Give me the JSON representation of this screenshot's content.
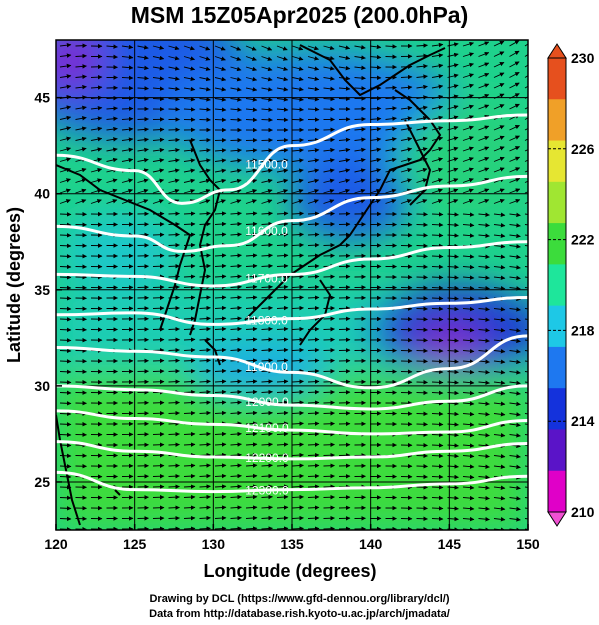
{
  "title": "MSM 15Z05Apr2025 (200.0hPa)",
  "xlabel": "Longitude (degrees)",
  "ylabel": "Latitude  (degrees)",
  "x_ticks": [
    "120",
    "125",
    "130",
    "135",
    "140",
    "145",
    "150"
  ],
  "y_ticks": [
    "25",
    "30",
    "35",
    "40",
    "45"
  ],
  "colorbar": {
    "ticks": [
      "210",
      "214",
      "218",
      "222",
      "226",
      "230"
    ],
    "colors": [
      "#e000c8",
      "#5a14c8",
      "#1432dc",
      "#1e78f0",
      "#1ec8e6",
      "#1ee69b",
      "#3cdc3c",
      "#a0e632",
      "#e6e632",
      "#f0a028",
      "#e6501e"
    ]
  },
  "credits": {
    "line1": "Drawing by DCL (https://www.gfd-dennou.org/library/dcl/)",
    "line2": "Data from http://database.rish.kyoto-u.ac.jp/arch/jmadata/"
  },
  "chart_data": {
    "type": "heatmap",
    "x_range": [
      120,
      150
    ],
    "y_range": [
      22.5,
      48
    ],
    "color_range": [
      210,
      230
    ],
    "contour_labels": [
      "11500.0",
      "11600.0",
      "11700.0",
      "11800.0",
      "11900.0",
      "12000.0",
      "12100.0",
      "12200.0",
      "12300.0"
    ],
    "contours": [
      {
        "label": "11500.0",
        "points": [
          [
            120,
            42.0
          ],
          [
            125,
            41.2
          ],
          [
            128,
            39.5
          ],
          [
            131,
            40.2
          ],
          [
            135,
            42.5
          ],
          [
            140,
            43.6
          ],
          [
            145,
            43.8
          ],
          [
            150,
            44.1
          ]
        ]
      },
      {
        "label": "11600.0",
        "points": [
          [
            120,
            38.3
          ],
          [
            125,
            37.8
          ],
          [
            128,
            37.0
          ],
          [
            131,
            37.3
          ],
          [
            135,
            38.6
          ],
          [
            140,
            39.8
          ],
          [
            145,
            40.4
          ],
          [
            150,
            40.9
          ]
        ]
      },
      {
        "label": "11700.0",
        "points": [
          [
            120,
            35.8
          ],
          [
            125,
            35.7
          ],
          [
            130,
            35.2
          ],
          [
            135,
            35.8
          ],
          [
            140,
            36.6
          ],
          [
            145,
            37.2
          ],
          [
            150,
            37.5
          ]
        ]
      },
      {
        "label": "11800.0",
        "points": [
          [
            120,
            33.7
          ],
          [
            125,
            33.8
          ],
          [
            130,
            33.2
          ],
          [
            135,
            33.5
          ],
          [
            140,
            34.0
          ],
          [
            145,
            34.3
          ],
          [
            150,
            34.6
          ]
        ]
      },
      {
        "label": "11900.0",
        "points": [
          [
            120,
            32.0
          ],
          [
            125,
            31.8
          ],
          [
            130,
            31.5
          ],
          [
            135,
            30.7
          ],
          [
            140,
            29.9
          ],
          [
            145,
            30.9
          ],
          [
            150,
            32.6
          ]
        ]
      },
      {
        "label": "12000.0",
        "points": [
          [
            120,
            30.0
          ],
          [
            125,
            29.8
          ],
          [
            130,
            29.5
          ],
          [
            135,
            29.0
          ],
          [
            140,
            28.8
          ],
          [
            145,
            29.2
          ],
          [
            150,
            30.0
          ]
        ]
      },
      {
        "label": "12100.0",
        "points": [
          [
            120,
            28.7
          ],
          [
            125,
            28.3
          ],
          [
            130,
            28.0
          ],
          [
            135,
            27.7
          ],
          [
            140,
            27.5
          ],
          [
            145,
            27.6
          ],
          [
            150,
            28.2
          ]
        ]
      },
      {
        "label": "12200.0",
        "points": [
          [
            120,
            27.1
          ],
          [
            125,
            26.6
          ],
          [
            130,
            26.3
          ],
          [
            135,
            26.2
          ],
          [
            140,
            26.3
          ],
          [
            145,
            26.6
          ],
          [
            150,
            27.0
          ]
        ]
      },
      {
        "label": "12300.0",
        "points": [
          [
            120,
            25.5
          ],
          [
            125,
            24.6
          ],
          [
            130,
            24.5
          ],
          [
            135,
            24.6
          ],
          [
            140,
            24.7
          ],
          [
            145,
            24.9
          ],
          [
            150,
            25.3
          ]
        ]
      }
    ]
  }
}
